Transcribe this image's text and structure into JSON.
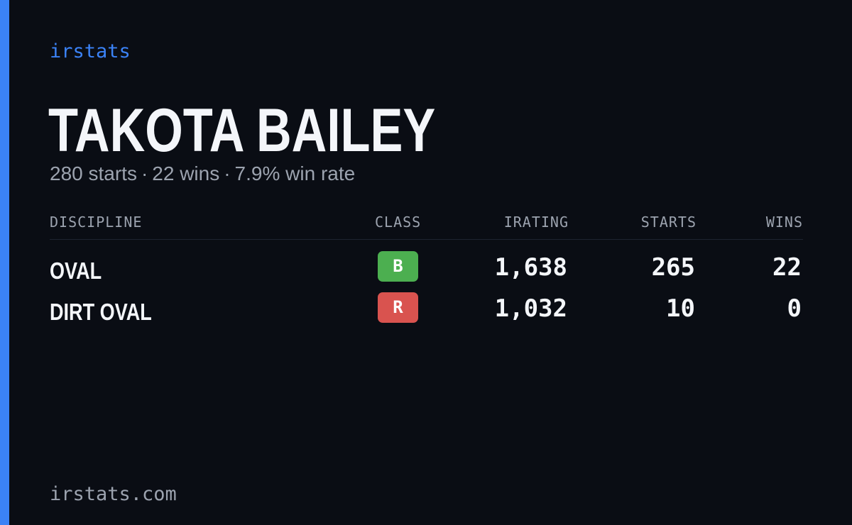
{
  "brand": "irstats",
  "player": {
    "name": "TAKOTA BAILEY",
    "summary": {
      "starts": "280 starts",
      "wins": "22 wins",
      "win_rate": "7.9% win rate",
      "separator": "·"
    }
  },
  "table": {
    "headers": {
      "discipline": "DISCIPLINE",
      "class": "CLASS",
      "irating": "IRATING",
      "starts": "STARTS",
      "wins": "WINS"
    },
    "rows": [
      {
        "discipline": "OVAL",
        "class": "B",
        "class_color": "#4caf50",
        "irating": "1,638",
        "starts": "265",
        "wins": "22"
      },
      {
        "discipline": "DIRT OVAL",
        "class": "R",
        "class_color": "#d9534f",
        "irating": "1,032",
        "starts": "10",
        "wins": "0"
      }
    ]
  },
  "footer": "irstats.com",
  "colors": {
    "background": "#0a0d14",
    "accent": "#3b82f6",
    "muted_text": "#9ca3af",
    "primary_text": "#f4f6fa"
  }
}
